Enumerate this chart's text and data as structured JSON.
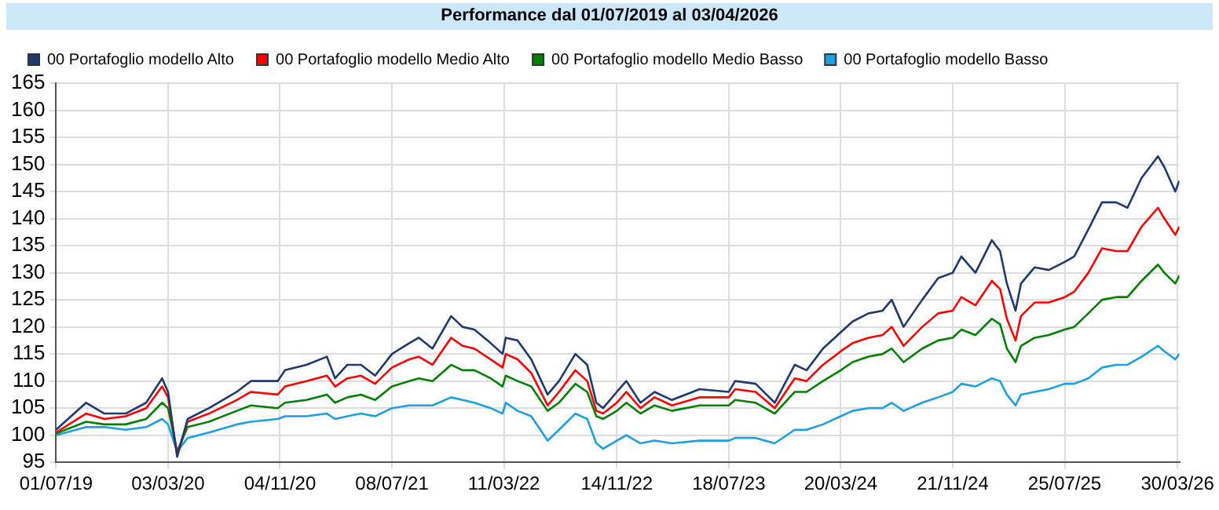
{
  "chart_data": {
    "type": "line",
    "title": "Performance dal 01/07/2019 al 03/04/2026",
    "x": [
      "2019-07-01",
      "2019-09-05",
      "2019-10-15",
      "2019-12-01",
      "2020-01-15",
      "2020-02-19",
      "2020-03-03",
      "2020-03-23",
      "2020-04-15",
      "2020-06-01",
      "2020-08-01",
      "2020-09-01",
      "2020-10-30",
      "2020-11-15",
      "2021-01-01",
      "2021-02-15",
      "2021-03-05",
      "2021-04-01",
      "2021-05-01",
      "2021-06-01",
      "2021-07-08",
      "2021-08-15",
      "2021-09-05",
      "2021-10-05",
      "2021-11-15",
      "2021-12-10",
      "2022-01-05",
      "2022-02-10",
      "2022-03-08",
      "2022-03-15",
      "2022-04-10",
      "2022-05-10",
      "2022-06-15",
      "2022-07-10",
      "2022-08-15",
      "2022-09-10",
      "2022-09-30",
      "2022-10-15",
      "2022-11-14",
      "2022-12-05",
      "2023-01-05",
      "2023-02-05",
      "2023-03-15",
      "2023-05-15",
      "2023-07-18",
      "2023-08-01",
      "2023-09-15",
      "2023-10-27",
      "2023-12-10",
      "2024-01-05",
      "2024-02-10",
      "2024-03-20",
      "2024-04-15",
      "2024-05-20",
      "2024-06-20",
      "2024-07-10",
      "2024-08-05",
      "2024-09-15",
      "2024-10-20",
      "2024-11-21",
      "2024-12-10",
      "2025-01-10",
      "2025-02-15",
      "2025-03-05",
      "2025-03-20",
      "2025-04-08",
      "2025-04-20",
      "2025-05-20",
      "2025-06-20",
      "2025-07-25",
      "2025-08-15",
      "2025-09-15",
      "2025-10-15",
      "2025-11-15",
      "2025-12-10",
      "2026-01-10",
      "2026-02-15",
      "2026-03-01",
      "2026-03-25",
      "2026-04-03"
    ],
    "series": [
      {
        "name": "00 Portafoglio modello Alto",
        "color": "#1f3a6e",
        "values": [
          101,
          106,
          104,
          104,
          106,
          110.5,
          108,
          96,
          103,
          105,
          108,
          110,
          110,
          112,
          113,
          114.5,
          110.5,
          113,
          113,
          111,
          115,
          117,
          118,
          116,
          122,
          120,
          119.5,
          117,
          115,
          118,
          117.5,
          114,
          107.5,
          110,
          115,
          113,
          106,
          105,
          108,
          110,
          106,
          108,
          106.5,
          108.5,
          108,
          110,
          109.5,
          106,
          113,
          112,
          116,
          119,
          121,
          122.5,
          123,
          125,
          120,
          125,
          129,
          130,
          133,
          130,
          136,
          134,
          128,
          123,
          128,
          131,
          130.5,
          132,
          133,
          138,
          143,
          143,
          142,
          147.5,
          151.5,
          149.5,
          145,
          147
        ]
      },
      {
        "name": "00 Portafoglio modello Medio Alto",
        "color": "#ff0000",
        "values": [
          100.5,
          104,
          103,
          103.5,
          105,
          109,
          107,
          96.5,
          102.5,
          104,
          106.5,
          108,
          107.5,
          109,
          110,
          111,
          109,
          110.5,
          111,
          109.5,
          112.5,
          114,
          114.5,
          113,
          118,
          116.5,
          116,
          114,
          112.5,
          115,
          114,
          111.5,
          105.5,
          108,
          112,
          110,
          104.5,
          104,
          106,
          108,
          105,
          107,
          105.5,
          107,
          107,
          108.5,
          108,
          105,
          110.5,
          110,
          113,
          115.5,
          117,
          118,
          118.5,
          120,
          116.5,
          120,
          122.5,
          123,
          125.5,
          124,
          128.5,
          127,
          121.5,
          117.5,
          122,
          124.5,
          124.5,
          125.5,
          126.5,
          130,
          134.5,
          134,
          134,
          138.5,
          142,
          140,
          137,
          138.5
        ]
      },
      {
        "name": "00 Portafoglio modello Medio Basso",
        "color": "#008000",
        "values": [
          100.3,
          102.5,
          102,
          102,
          103,
          106,
          105,
          97,
          101.5,
          102.5,
          104.5,
          105.5,
          105,
          106,
          106.5,
          107.5,
          106,
          107,
          107.5,
          106.5,
          109,
          110,
          110.5,
          110,
          113,
          112,
          112,
          110.5,
          109,
          111,
          110,
          109,
          104.5,
          106,
          109.5,
          108,
          103.5,
          103,
          104.5,
          106,
          104,
          105.5,
          104.5,
          105.5,
          105.5,
          106.5,
          106,
          104,
          108,
          108,
          110,
          112,
          113.5,
          114.5,
          115,
          116,
          113.5,
          116,
          117.5,
          118,
          119.5,
          118.5,
          121.5,
          120.5,
          116,
          113.5,
          116.5,
          118,
          118.5,
          119.5,
          120,
          122.5,
          125,
          125.5,
          125.5,
          128.5,
          131.5,
          130,
          128,
          129.5
        ]
      },
      {
        "name": "00 Portafoglio modello Basso",
        "color": "#1e9fdf",
        "values": [
          100,
          101.5,
          101.5,
          101,
          101.5,
          103,
          102,
          97,
          99.5,
          100.5,
          102,
          102.5,
          103,
          103.5,
          103.5,
          104,
          103,
          103.5,
          104,
          103.5,
          105,
          105.5,
          105.5,
          105.5,
          107,
          106.5,
          106,
          105,
          104,
          106,
          104.5,
          103.5,
          99,
          101,
          104,
          103,
          98.5,
          97.5,
          99,
          100,
          98.5,
          99,
          98.5,
          99,
          99,
          99.5,
          99.5,
          98.5,
          101,
          101,
          102,
          103.5,
          104.5,
          105,
          105,
          106,
          104.5,
          106,
          107,
          108,
          109.5,
          109,
          110.5,
          110,
          107.5,
          105.5,
          107.5,
          108,
          108.5,
          109.5,
          109.5,
          110.5,
          112.5,
          113,
          113,
          114.5,
          116.5,
          115.5,
          114,
          115
        ]
      }
    ],
    "xlim": [
      "2019-07-01",
      "2026-04-03"
    ],
    "xticks": [
      {
        "value": "2019-07-01",
        "label": "01/07/19"
      },
      {
        "value": "2020-03-03",
        "label": "03/03/20"
      },
      {
        "value": "2020-11-04",
        "label": "04/11/20"
      },
      {
        "value": "2021-07-08",
        "label": "08/07/21"
      },
      {
        "value": "2022-03-11",
        "label": "11/03/22"
      },
      {
        "value": "2022-11-14",
        "label": "14/11/22"
      },
      {
        "value": "2023-07-18",
        "label": "18/07/23"
      },
      {
        "value": "2024-03-20",
        "label": "20/03/24"
      },
      {
        "value": "2024-11-21",
        "label": "21/11/24"
      },
      {
        "value": "2025-07-25",
        "label": "25/07/25"
      },
      {
        "value": "2026-03-30",
        "label": "30/03/26"
      }
    ],
    "ylim": [
      95,
      165
    ],
    "yticks": [
      95,
      100,
      105,
      110,
      115,
      120,
      125,
      130,
      135,
      140,
      145,
      150,
      155,
      160,
      165
    ],
    "grid": true,
    "legend": "top left",
    "marker": "none",
    "line_style": "solid"
  }
}
